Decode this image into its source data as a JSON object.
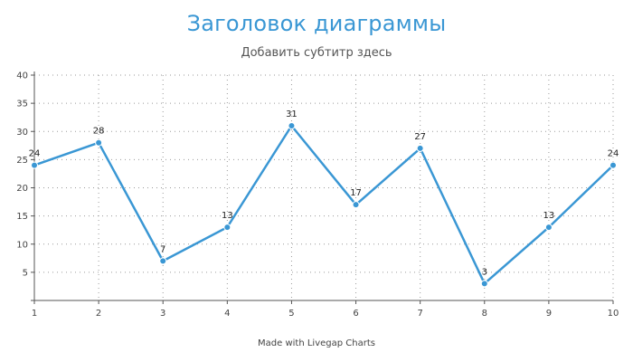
{
  "chart_data": {
    "type": "line",
    "title": "Заголовок диаграммы",
    "subtitle": "Добавить субтитр здесь",
    "xlabel": "",
    "ylabel": "",
    "categories": [
      "1",
      "2",
      "3",
      "4",
      "5",
      "6",
      "7",
      "8",
      "9",
      "10"
    ],
    "series": [
      {
        "values": [
          24,
          28,
          7,
          13,
          31,
          17,
          27,
          3,
          13,
          24
        ],
        "color": "#3a97d4"
      }
    ],
    "yticks": [
      "5",
      "10",
      "15",
      "20",
      "25",
      "30",
      "35",
      "40"
    ],
    "ylim": [
      0,
      40
    ],
    "grid": true,
    "data_labels": true,
    "credit": "Made with Livegap Charts"
  }
}
